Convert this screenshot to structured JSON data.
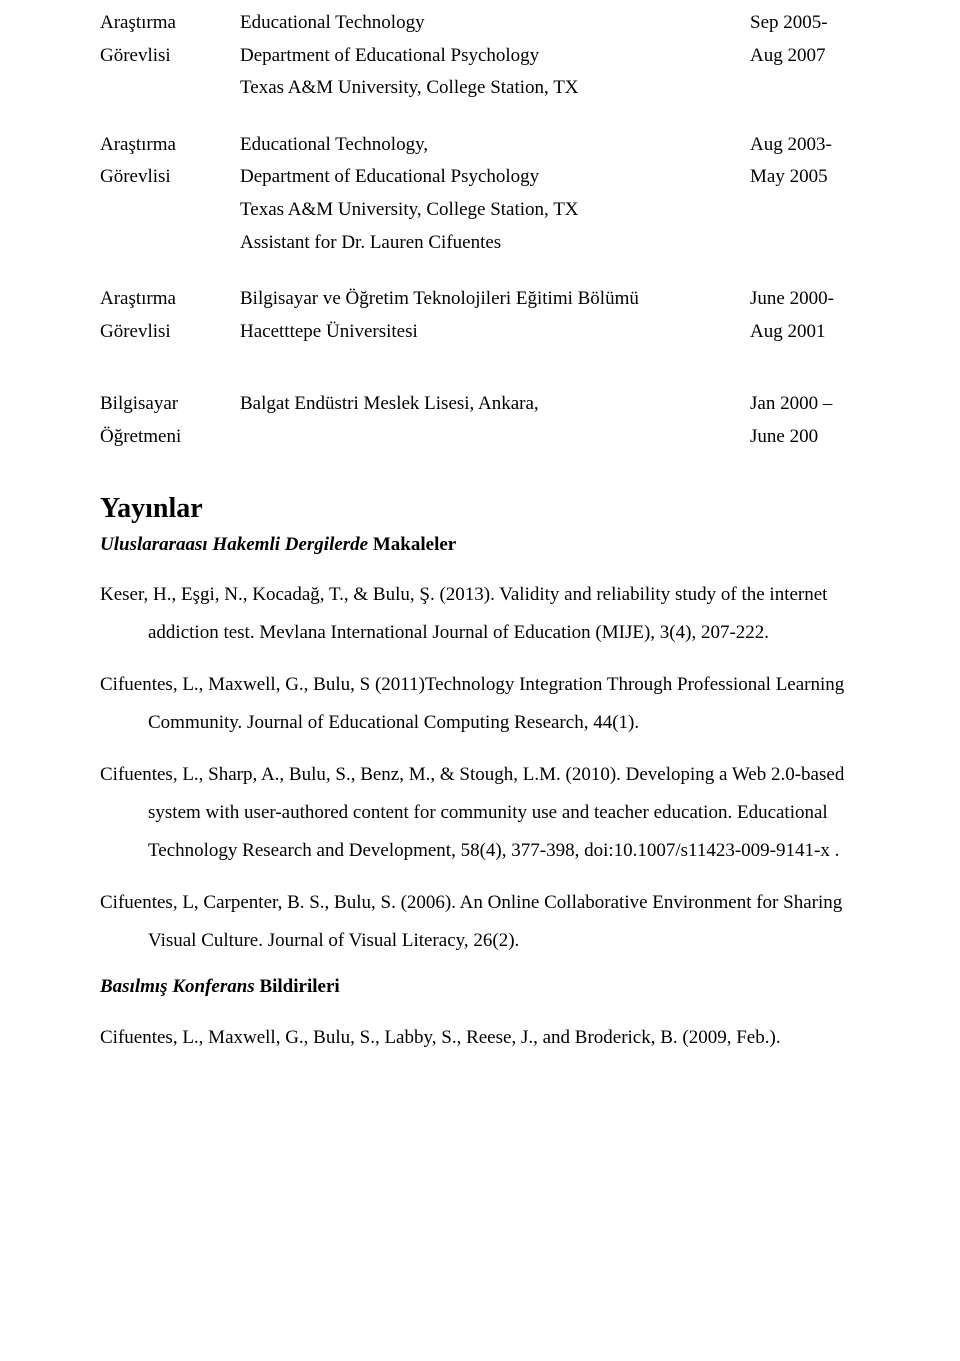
{
  "experience": [
    {
      "role_l1": "Araştırma",
      "role_l2": "Görevlisi",
      "lines": [
        "Educational Technology",
        "Department of Educational Psychology",
        "Texas A&M University, College Station, TX"
      ],
      "date_l1": "Sep 2005-",
      "date_l2": "Aug 2007"
    },
    {
      "role_l1": "Araştırma",
      "role_l2": "Görevlisi",
      "lines": [
        "Educational Technology,",
        "Department of Educational Psychology",
        "Texas A&M University, College Station, TX",
        "Assistant for Dr. Lauren Cifuentes"
      ],
      "date_l1": "Aug 2003-",
      "date_l2": "May 2005"
    },
    {
      "role_l1": "Araştırma",
      "role_l2": "Görevlisi",
      "lines": [
        "Bilgisayar ve Öğretim Teknolojileri Eğitimi Bölümü",
        "Hacetttepe Üniversitesi"
      ],
      "date_l1": "June 2000-",
      "date_l2": "Aug 2001"
    },
    {
      "role_l1": "Bilgisayar",
      "role_l2": "Öğretmeni",
      "lines": [
        "Balgat Endüstri Meslek Lisesi, Ankara,"
      ],
      "date_l1": "Jan 2000 –",
      "date_l2": "June 200",
      "gap_before": true
    }
  ],
  "pubs_heading": "Yayınlar",
  "journals_heading_italic": "Uluslararaası Hakemli Dergilerde ",
  "journals_heading_bold": "Makaleler",
  "journal_refs": [
    "Keser, H., Eşgi, N., Kocadağ, T., & Bulu, Ş. (2013). Validity and reliability study of the internet addiction test. Mevlana International Journal of Education (MIJE), 3(4), 207-222.",
    "Cifuentes, L., Maxwell, G., Bulu, S (2011)Technology Integration Through Professional Learning Community. Journal of Educational Computing Research, 44(1).",
    "Cifuentes, L., Sharp, A., Bulu, S., Benz, M., & Stough, L.M. (2010). Developing a Web 2.0-based system with user-authored content for community use and teacher education. Educational Technology Research and Development, 58(4), 377-398, doi:10.1007/s11423-009-9141-x .",
    "Cifuentes, L, Carpenter, B. S., Bulu, S. (2006). An Online Collaborative Environment for Sharing Visual Culture. Journal of Visual Literacy, 26(2)."
  ],
  "conf_heading_italic": "Basılmış Konferans ",
  "conf_heading_bold": "Bildirileri",
  "conf_refs": [
    "Cifuentes, L., Maxwell, G., Bulu, S., Labby, S., Reese, J., and Broderick, B.  (2009, Feb.)."
  ]
}
